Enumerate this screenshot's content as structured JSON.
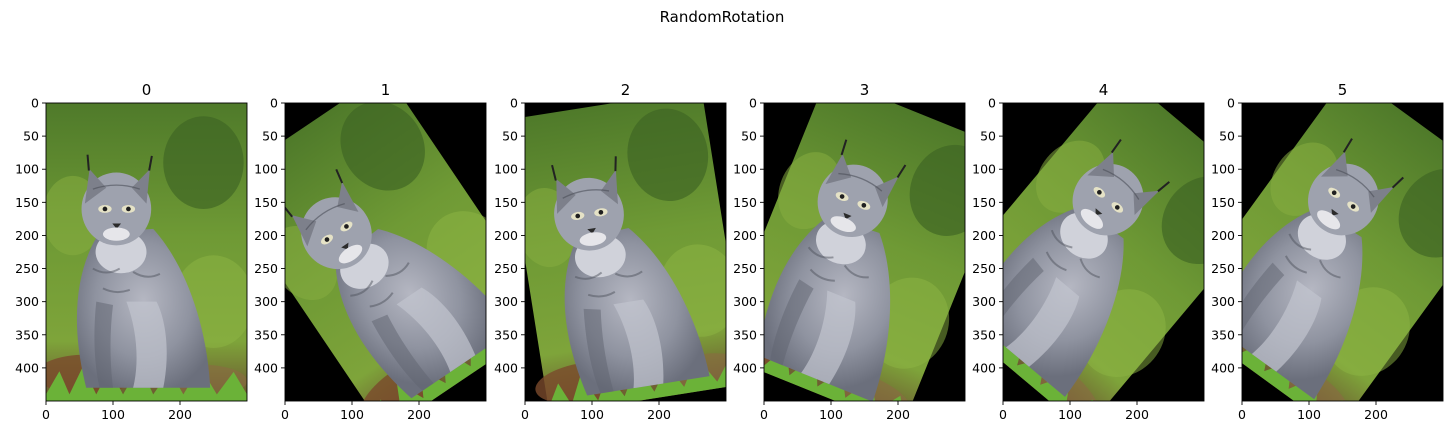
{
  "figure": {
    "suptitle": "RandomRotation"
  },
  "chart_data": {
    "type": "image-grid",
    "title": "RandomRotation",
    "image_subject": "lynx",
    "panels": [
      {
        "title": "0",
        "rotation_deg": 0
      },
      {
        "title": "1",
        "rotation_deg": 34
      },
      {
        "title": "2",
        "rotation_deg": 9
      },
      {
        "title": "3",
        "rotation_deg": -22
      },
      {
        "title": "4",
        "rotation_deg": -40
      },
      {
        "title": "5",
        "rotation_deg": -36
      }
    ],
    "xlim": [
      0,
      300
    ],
    "ylim": [
      450,
      0
    ],
    "xticks": [
      0,
      100,
      200
    ],
    "yticks": [
      0,
      50,
      100,
      150,
      200,
      250,
      300,
      350,
      400
    ],
    "colors": {
      "background_fill": "#000000",
      "grass": "#5f8d2e",
      "fur": "#8a8f9c"
    }
  }
}
